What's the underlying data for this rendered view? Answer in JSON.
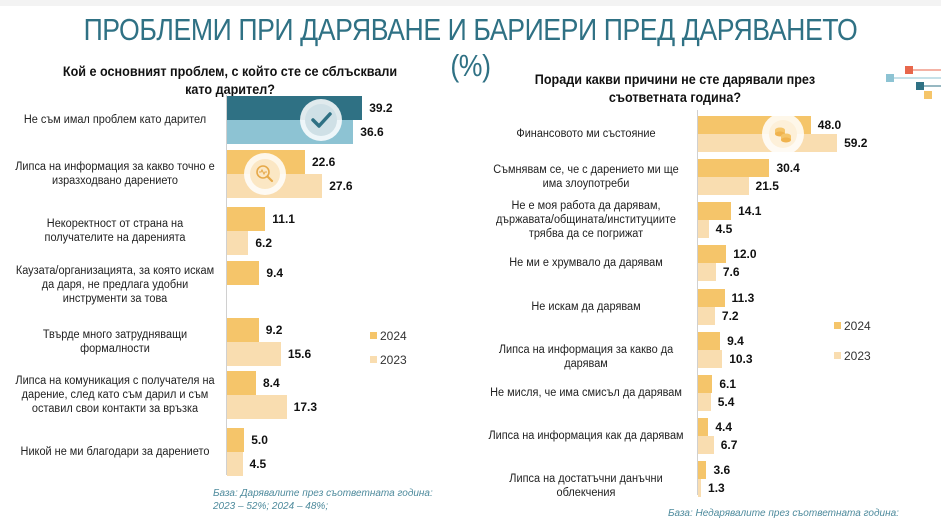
{
  "title": "ПРОБЛЕМИ ПРИ ДАРЯВАНЕ И БАРИЕРИ ПРЕД ДАРЯВАНЕТО (%)",
  "colors": {
    "title": "#2f7184",
    "left_top_2024": "#2f7184",
    "left_top_2023": "#8dc3d3",
    "bar_2024": "#f5c56a",
    "bar_2023": "#f9ddb0",
    "note": "#4d8a9c"
  },
  "chart_data": [
    {
      "type": "bar",
      "orientation": "horizontal",
      "title": "Кой е основният проблем, с който сте се сблъсквали като дарител?",
      "xlim": [
        0,
        45
      ],
      "legend": {
        "position": "right",
        "entries": [
          "2024",
          "2023"
        ]
      },
      "categories": [
        "Не съм имал проблем като дарител",
        "Липса на информация за какво точно е изразходвано дарението",
        "Некоректност от страна на получателите на даренията",
        "Каузата/организацията, за която искам да даря, не предлага удобни инструменти за това",
        "Твърде много затрудняващи формалности",
        "Липса на комуникация с получателя на дарение, след като съм дарил и съм оставил свои контакти за връзка",
        "Никой не ми благодари за дарението"
      ],
      "series": [
        {
          "name": "2024",
          "values": [
            39.2,
            22.6,
            11.1,
            9.4,
            9.2,
            8.4,
            5.0
          ]
        },
        {
          "name": "2023",
          "values": [
            36.6,
            27.6,
            6.2,
            null,
            15.6,
            17.3,
            4.5
          ]
        }
      ],
      "value_labels": {
        "2024": [
          "39.2",
          "22.6",
          "11.1",
          "9.4",
          "9.2",
          "8.4",
          "5.0"
        ],
        "2023": [
          "36.6",
          "27.6",
          "6.2",
          "",
          "15.6",
          "17.3",
          "4.5"
        ]
      },
      "icons": [
        "checkmark-icon",
        "magnifier-pulse-icon"
      ],
      "note": "База: Дарявалите през съответната година: 2023 – 52%; 2024 – 48%;"
    },
    {
      "type": "bar",
      "orientation": "horizontal",
      "title": "Поради какви причини не сте дарявали през съответната година?",
      "xlim": [
        0,
        70
      ],
      "legend": {
        "position": "right",
        "entries": [
          "2024",
          "2023"
        ]
      },
      "categories": [
        "Финансовото ми състояние",
        "Съмнявам се, че с дарението ми ще има злоупотреби",
        "Не е моя работа да дарявам, държавата/общината/институциите трябва да се погрижат",
        "Не ми е хрумвало да дарявам",
        "Не искам да дарявам",
        "Липса на информация за какво да дарявам",
        "Не мисля, че има смисъл да дарявам",
        "Липса на информация как да дарявам",
        "Липса на достатъчни данъчни облекчения"
      ],
      "series": [
        {
          "name": "2024",
          "values": [
            48.0,
            30.4,
            14.1,
            12.0,
            11.3,
            9.4,
            6.1,
            4.4,
            3.6
          ]
        },
        {
          "name": "2023",
          "values": [
            59.2,
            21.5,
            4.5,
            7.6,
            7.2,
            10.3,
            5.4,
            6.7,
            1.3
          ]
        }
      ],
      "value_labels": {
        "2024": [
          "48.0",
          "30.4",
          "14.1",
          "12.0",
          "11.3",
          "9.4",
          "6.1",
          "4.4",
          "3.6"
        ],
        "2023": [
          "59.2",
          "21.5",
          "4.5",
          "7.6",
          "7.2",
          "10.3",
          "5.4",
          "6.7",
          "1.3"
        ]
      },
      "icons": [
        "coins-icon"
      ],
      "note": "База: Недарявалите през съответната година:"
    }
  ]
}
